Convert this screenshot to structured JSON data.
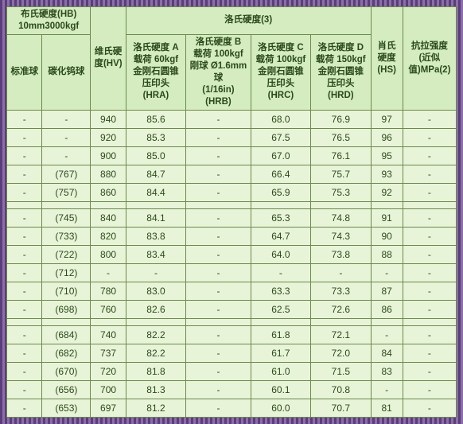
{
  "headers": {
    "brinell_group": "布氏硬度(HB)\n10mm3000kgf",
    "brinell_std": "标准球",
    "brinell_tungsten": "碳化钨球",
    "vickers": "维氏硬度(HV)",
    "rockwell_group": "洛氏硬度(3)",
    "hra": "洛氏硬度 A\n载荷 60kgf\n金刚石圆锥\n压印头\n(HRA)",
    "hrb": "洛氏硬度 B\n载荷 100kgf\n刚球 Ø1.6mm 球\n(1/16in)\n(HRB)",
    "hrc": "洛氏硬度 C\n载荷 100kgf\n金刚石圆锥\n压印头\n(HRC)",
    "hrd": "洛氏硬度 D\n载荷 150kgf\n金刚石圆锥\n压印头\n(HRD)",
    "shore": "肖氏硬度(HS)",
    "tensile": "抗拉强度\n(近似\n值)MPa(2)"
  },
  "rows": [
    {
      "std": "-",
      "tun": "-",
      "hv": "940",
      "hra": "85.6",
      "hrb": "-",
      "hrc": "68.0",
      "hrd": "76.9",
      "hs": "97",
      "mpa": "-"
    },
    {
      "std": "-",
      "tun": "-",
      "hv": "920",
      "hra": "85.3",
      "hrb": "-",
      "hrc": "67.5",
      "hrd": "76.5",
      "hs": "96",
      "mpa": "-"
    },
    {
      "std": "-",
      "tun": "-",
      "hv": "900",
      "hra": "85.0",
      "hrb": "-",
      "hrc": "67.0",
      "hrd": "76.1",
      "hs": "95",
      "mpa": "-"
    },
    {
      "std": "-",
      "tun": "(767)",
      "hv": "880",
      "hra": "84.7",
      "hrb": "-",
      "hrc": "66.4",
      "hrd": "75.7",
      "hs": "93",
      "mpa": "-"
    },
    {
      "std": "-",
      "tun": "(757)",
      "hv": "860",
      "hra": "84.4",
      "hrb": "-",
      "hrc": "65.9",
      "hrd": "75.3",
      "hs": "92",
      "mpa": "-"
    },
    {
      "spacer": true
    },
    {
      "std": "-",
      "tun": "(745)",
      "hv": "840",
      "hra": "84.1",
      "hrb": "-",
      "hrc": "65.3",
      "hrd": "74.8",
      "hs": "91",
      "mpa": "-"
    },
    {
      "std": "-",
      "tun": "(733)",
      "hv": "820",
      "hra": "83.8",
      "hrb": "-",
      "hrc": "64.7",
      "hrd": "74.3",
      "hs": "90",
      "mpa": "-"
    },
    {
      "std": "-",
      "tun": "(722)",
      "hv": "800",
      "hra": "83.4",
      "hrb": "-",
      "hrc": "64.0",
      "hrd": "73.8",
      "hs": "88",
      "mpa": "-"
    },
    {
      "std": "-",
      "tun": "(712)",
      "hv": "-",
      "hra": "-",
      "hrb": "-",
      "hrc": "-",
      "hrd": "-",
      "hs": "-",
      "mpa": "-"
    },
    {
      "std": "-",
      "tun": "(710)",
      "hv": "780",
      "hra": "83.0",
      "hrb": "-",
      "hrc": "63.3",
      "hrd": "73.3",
      "hs": "87",
      "mpa": "-"
    },
    {
      "std": "-",
      "tun": "(698)",
      "hv": "760",
      "hra": "82.6",
      "hrb": "-",
      "hrc": "62.5",
      "hrd": "72.6",
      "hs": "86",
      "mpa": "-"
    },
    {
      "spacer": true
    },
    {
      "std": "-",
      "tun": "(684)",
      "hv": "740",
      "hra": "82.2",
      "hrb": "-",
      "hrc": "61.8",
      "hrd": "72.1",
      "hs": "-",
      "mpa": "-"
    },
    {
      "std": "-",
      "tun": "(682)",
      "hv": "737",
      "hra": "82.2",
      "hrb": "-",
      "hrc": "61.7",
      "hrd": "72.0",
      "hs": "84",
      "mpa": "-"
    },
    {
      "std": "-",
      "tun": "(670)",
      "hv": "720",
      "hra": "81.8",
      "hrb": "-",
      "hrc": "61.0",
      "hrd": "71.5",
      "hs": "83",
      "mpa": "-"
    },
    {
      "std": "-",
      "tun": "(656)",
      "hv": "700",
      "hra": "81.3",
      "hrb": "-",
      "hrc": "60.1",
      "hrd": "70.8",
      "hs": "-",
      "mpa": "-"
    },
    {
      "std": "-",
      "tun": "(653)",
      "hv": "697",
      "hra": "81.2",
      "hrb": "-",
      "hrc": "60.0",
      "hrd": "70.7",
      "hs": "81",
      "mpa": "-"
    }
  ],
  "style": {
    "header_bg": "#d4ecc0",
    "cell_bg": "#e8f4d8",
    "border_color": "#6a8a4a",
    "text_color": "#2a4a1a",
    "outer_bg_stripe1": "#5a3d7a",
    "outer_bg_stripe2": "#8b6fa8"
  }
}
